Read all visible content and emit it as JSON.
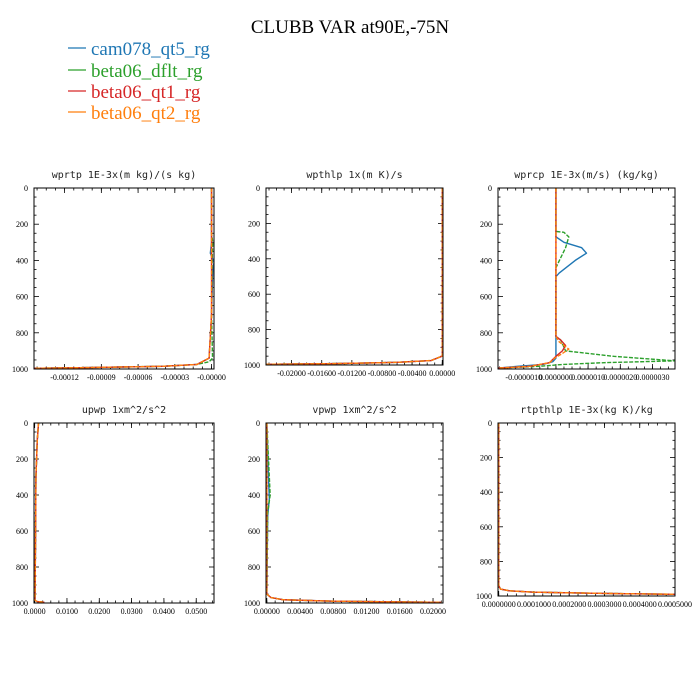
{
  "figure": {
    "title": "CLUBB VAR at90E,-75N",
    "legend": [
      {
        "name": "cam078_qt5_rg",
        "color": "#1f77b4"
      },
      {
        "name": "beta06_dflt_rg",
        "color": "#2ca02c"
      },
      {
        "name": "beta06_qt1_rg",
        "color": "#d62728"
      },
      {
        "name": "beta06_qt2_rg",
        "color": "#ff7f0e"
      }
    ]
  },
  "chart_data": [
    {
      "type": "line",
      "title": "wprtp  1E-3x(m kg)/(s kg)",
      "xlabel": "",
      "ylabel": "",
      "xlim": [
        -0.000145,
        2e-06
      ],
      "ylim": [
        1000,
        0
      ],
      "x_ticks": [
        -0.00012,
        -9e-05,
        -6e-05,
        -3e-05,
        0.0
      ],
      "x_tick_labels": [
        "-0.00012",
        "-0.00009",
        "-0.00006",
        "-0.00003",
        "-0.00000"
      ],
      "y_ticks": [
        0,
        200,
        400,
        600,
        800,
        1000
      ],
      "y_tick_labels": [
        "0",
        "200",
        "400",
        "600",
        "800",
        "1000"
      ],
      "series": [
        {
          "color": "#1f77b4",
          "x": [
            0,
            0,
            0,
            -1e-06,
            2e-06,
            1e-06,
            0,
            -2e-06,
            -1.2e-05,
            -4e-05,
            -0.0001,
            -0.000145
          ],
          "y": [
            0,
            150,
            300,
            360,
            410,
            460,
            700,
            940,
            975,
            985,
            992,
            996
          ]
        },
        {
          "color": "#2ca02c",
          "x": [
            0,
            0,
            0,
            1e-06,
            5e-07,
            0,
            8e-07,
            -2e-06,
            -1.2e-05,
            -4e-05,
            -0.0001,
            -0.000145
          ],
          "y": [
            0,
            150,
            250,
            300,
            400,
            700,
            940,
            960,
            975,
            985,
            992,
            996
          ]
        },
        {
          "color": "#d62728",
          "x": [
            0,
            0,
            0,
            -2e-06,
            -1.2e-05,
            -4e-05,
            -0.0001,
            -0.000145
          ],
          "y": [
            0,
            300,
            700,
            940,
            975,
            985,
            992,
            996
          ]
        },
        {
          "color": "#ff7f0e",
          "x": [
            0,
            0,
            0,
            -2e-06,
            -1.2e-05,
            -4e-05,
            -0.0001,
            -0.000145
          ],
          "y": [
            0,
            300,
            700,
            940,
            975,
            985,
            992,
            996
          ]
        }
      ]
    },
    {
      "type": "line",
      "title": "wpthlp  1x(m K)/s",
      "xlabel": "",
      "ylabel": "",
      "xlim": [
        -0.0234,
        0.0001
      ],
      "ylim": [
        1000,
        0
      ],
      "x_ticks": [
        -0.02,
        -0.016,
        -0.012,
        -0.008,
        -0.004,
        0.0
      ],
      "x_tick_labels": [
        "-0.02000",
        "-0.01600",
        "-0.01200",
        "-0.00800",
        "-0.00400",
        "0.00000"
      ],
      "y_ticks": [
        0,
        200,
        400,
        600,
        800,
        1000
      ],
      "y_tick_labels": [
        "0",
        "200",
        "400",
        "600",
        "800",
        "1000"
      ],
      "series": [
        {
          "color": "#1f77b4",
          "x": [
            0,
            0,
            0,
            -0.0015,
            -0.006,
            -0.014,
            -0.0234
          ],
          "y": [
            0,
            500,
            950,
            975,
            985,
            992,
            996
          ]
        },
        {
          "color": "#2ca02c",
          "x": [
            0,
            0,
            0,
            -0.0015,
            -0.006,
            -0.014,
            -0.0234
          ],
          "y": [
            0,
            500,
            950,
            975,
            985,
            992,
            996
          ]
        },
        {
          "color": "#d62728",
          "x": [
            0,
            0,
            0,
            -0.0015,
            -0.006,
            -0.014,
            -0.0234
          ],
          "y": [
            0,
            500,
            950,
            975,
            985,
            992,
            996
          ]
        },
        {
          "color": "#ff7f0e",
          "x": [
            0,
            0,
            0,
            -0.0015,
            -0.006,
            -0.014,
            -0.0234
          ],
          "y": [
            0,
            500,
            950,
            975,
            985,
            992,
            996
          ]
        }
      ]
    },
    {
      "type": "line",
      "title": "wprcp  1E-3x(m/s) (kg/kg)",
      "xlabel": "",
      "ylabel": "",
      "xlim": [
        -1.8e-06,
        3.7e-06
      ],
      "ylim": [
        1000,
        0
      ],
      "x_ticks": [
        -1e-06,
        0.0,
        1e-06,
        2e-06,
        3e-06
      ],
      "x_tick_labels": [
        "-0.0000010",
        "0.0000000",
        "0.0000010",
        "0.0000020",
        "0.0000030"
      ],
      "y_ticks": [
        0,
        200,
        400,
        600,
        800,
        1000
      ],
      "y_tick_labels": [
        "0",
        "200",
        "400",
        "600",
        "800",
        "1000"
      ],
      "series": [
        {
          "color": "#1f77b4",
          "x": [
            0,
            0,
            2.5e-07,
            8e-07,
            9.5e-07,
            6e-07,
            1e-07,
            0,
            0,
            -1e-07,
            -4e-07,
            -1.2e-06,
            -1.8e-06
          ],
          "y": [
            0,
            270,
            300,
            330,
            360,
            400,
            470,
            490,
            940,
            960,
            975,
            985,
            995
          ]
        },
        {
          "color": "#2ca02c",
          "x": [
            0,
            0,
            2.5e-07,
            4e-07,
            3e-07,
            0,
            0,
            1.5e-07,
            3e-07,
            1.8e-06,
            3.7e-06,
            1.5e-06,
            2e-07,
            -5e-07,
            -1.8e-06
          ],
          "y": [
            0,
            240,
            245,
            270,
            330,
            440,
            820,
            840,
            900,
            930,
            955,
            965,
            975,
            985,
            995
          ]
        },
        {
          "color": "#d62728",
          "x": [
            0,
            0,
            1.5e-07,
            3e-07,
            2e-07,
            0,
            -2e-07,
            -8e-07,
            -1.8e-06
          ],
          "y": [
            0,
            820,
            840,
            870,
            900,
            930,
            965,
            985,
            995
          ]
        },
        {
          "color": "#ff7f0e",
          "x": [
            0,
            0,
            1e-07,
            4e-07,
            1.5e-07,
            0,
            -2e-07,
            -8e-07,
            -1.8e-06
          ],
          "y": [
            0,
            820,
            850,
            890,
            920,
            935,
            965,
            985,
            995
          ]
        }
      ]
    },
    {
      "type": "line",
      "title": "upwp  1xm^2/s^2",
      "xlabel": "",
      "ylabel": "",
      "xlim": [
        -0.0002,
        0.0555
      ],
      "ylim": [
        1000,
        0
      ],
      "x_ticks": [
        0.0,
        0.01,
        0.02,
        0.03,
        0.04,
        0.05
      ],
      "x_tick_labels": [
        "0.0000",
        "0.0100",
        "0.0200",
        "0.0300",
        "0.0400",
        "0.0500"
      ],
      "y_ticks": [
        0,
        200,
        400,
        600,
        800,
        1000
      ],
      "y_tick_labels": [
        "0",
        "200",
        "400",
        "600",
        "800",
        "1000"
      ],
      "series": [
        {
          "color": "#1f77b4",
          "x": [
            0.0012,
            0.0008,
            0.0004,
            0.0002,
            0.0001,
            0.0008,
            0.003
          ],
          "y": [
            0,
            100,
            300,
            800,
            985,
            992,
            996
          ]
        },
        {
          "color": "#2ca02c",
          "x": [
            0.0012,
            0.0008,
            0.0004,
            0.0002,
            0.0001,
            0.0008,
            0.003
          ],
          "y": [
            0,
            100,
            300,
            800,
            985,
            992,
            996
          ]
        },
        {
          "color": "#d62728",
          "x": [
            0.0012,
            0.0008,
            0.0004,
            0.0002,
            0.0001,
            0.0008,
            0.003
          ],
          "y": [
            0,
            100,
            300,
            800,
            985,
            992,
            996
          ]
        },
        {
          "color": "#ff7f0e",
          "x": [
            0.0012,
            0.0008,
            0.0004,
            0.0002,
            0.0001,
            0.0008,
            0.003
          ],
          "y": [
            0,
            100,
            300,
            800,
            985,
            992,
            996
          ]
        }
      ]
    },
    {
      "type": "line",
      "title": "vpwp  1xm^2/s^2",
      "xlabel": "",
      "ylabel": "",
      "xlim": [
        -0.0001,
        0.0212
      ],
      "ylim": [
        1000,
        0
      ],
      "x_ticks": [
        0.0,
        0.004,
        0.008,
        0.012,
        0.016,
        0.02
      ],
      "x_tick_labels": [
        "0.00000",
        "0.00400",
        "0.00800",
        "0.01200",
        "0.01600",
        "0.02000"
      ],
      "y_ticks": [
        0,
        200,
        400,
        600,
        800,
        1000
      ],
      "y_tick_labels": [
        "0",
        "200",
        "400",
        "600",
        "800",
        "1000"
      ],
      "series": [
        {
          "color": "#1f77b4",
          "x": [
            0,
            0.0002,
            0.0003,
            0.0001,
            0,
            0.0005,
            0.002,
            0.008,
            0.016,
            0.021
          ],
          "y": [
            0,
            300,
            420,
            520,
            950,
            970,
            982,
            990,
            994,
            996
          ]
        },
        {
          "color": "#2ca02c",
          "x": [
            0,
            0.0003,
            0.0004,
            0.0001,
            0,
            0.0005,
            0.002,
            0.008,
            0.016,
            0.021
          ],
          "y": [
            0,
            300,
            400,
            500,
            950,
            970,
            982,
            990,
            994,
            996
          ]
        },
        {
          "color": "#d62728",
          "x": [
            0,
            0,
            0,
            0.0005,
            0.002,
            0.008,
            0.016,
            0.021
          ],
          "y": [
            0,
            500,
            950,
            970,
            982,
            990,
            994,
            996
          ]
        },
        {
          "color": "#ff7f0e",
          "x": [
            0,
            0,
            0,
            0.0005,
            0.002,
            0.008,
            0.016,
            0.021
          ],
          "y": [
            0,
            500,
            950,
            970,
            982,
            990,
            994,
            996
          ]
        }
      ]
    },
    {
      "type": "line",
      "title": "rtpthlp  1E-3x(kg K)/kg",
      "xlabel": "",
      "ylabel": "",
      "xlim": [
        -2e-06,
        0.0005
      ],
      "ylim": [
        1000,
        0
      ],
      "x_ticks": [
        0.0,
        0.0001,
        0.0002,
        0.0003,
        0.0004,
        0.0005
      ],
      "x_tick_labels": [
        "0.0000000",
        "0.0001000",
        "0.0002000",
        "0.0003000",
        "0.0004000",
        "0.0005000"
      ],
      "y_ticks": [
        0,
        200,
        400,
        600,
        800,
        1000
      ],
      "y_tick_labels": [
        "0",
        "200",
        "400",
        "600",
        "800",
        "1000"
      ],
      "series": [
        {
          "color": "#1f77b4",
          "x": [
            0,
            0,
            0,
            5e-06,
            3e-05,
            0.0001,
            0.0003,
            0.0005
          ],
          "y": [
            0,
            500,
            940,
            960,
            970,
            978,
            985,
            990
          ]
        },
        {
          "color": "#2ca02c",
          "x": [
            0,
            0,
            0,
            5e-06,
            3e-05,
            0.0001,
            0.0003,
            0.0005
          ],
          "y": [
            0,
            500,
            940,
            960,
            970,
            978,
            985,
            990
          ]
        },
        {
          "color": "#d62728",
          "x": [
            0,
            0,
            0,
            5e-06,
            3e-05,
            0.0001,
            0.0003,
            0.0005
          ],
          "y": [
            0,
            500,
            940,
            960,
            970,
            978,
            985,
            990
          ]
        },
        {
          "color": "#ff7f0e",
          "x": [
            0,
            0,
            0,
            5e-06,
            3e-05,
            0.0001,
            0.0003,
            0.0005
          ],
          "y": [
            0,
            500,
            940,
            960,
            970,
            978,
            985,
            990
          ]
        }
      ]
    }
  ]
}
